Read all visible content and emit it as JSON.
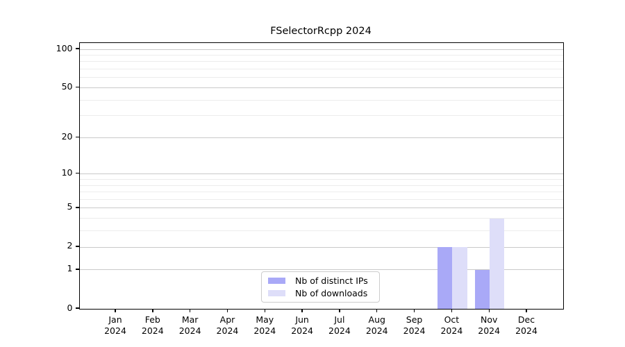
{
  "chart_data": {
    "type": "bar",
    "title": "FSelectorRcpp 2024",
    "categories": [
      "Jan",
      "Feb",
      "Mar",
      "Apr",
      "May",
      "Jun",
      "Jul",
      "Aug",
      "Sep",
      "Oct",
      "Nov",
      "Dec"
    ],
    "category_year": "2024",
    "series": [
      {
        "name": "Nb of distinct IPs",
        "color": "#a9a9f7",
        "values": [
          0,
          0,
          0,
          0,
          0,
          0,
          0,
          0,
          0,
          2,
          1,
          0
        ]
      },
      {
        "name": "Nb of downloads",
        "color": "#dedef9",
        "values": [
          0,
          0,
          0,
          0,
          0,
          0,
          0,
          0,
          0,
          2,
          4,
          0
        ]
      }
    ],
    "y_axis": {
      "scale": "log1p",
      "ticks": [
        0,
        1,
        2,
        5,
        10,
        20,
        50,
        100
      ],
      "minor_ticks": [
        3,
        4,
        6,
        7,
        8,
        9,
        30,
        40,
        60,
        70,
        80,
        90
      ],
      "max": 112
    },
    "x_axis": {
      "label_format": "month-over-year"
    },
    "grid": true,
    "legend_position": "lower-center-inside",
    "colors": {
      "axis": "#000000",
      "grid_major": "#c9c9c9",
      "grid_minor": "#ececec",
      "background": "#ffffff"
    }
  }
}
